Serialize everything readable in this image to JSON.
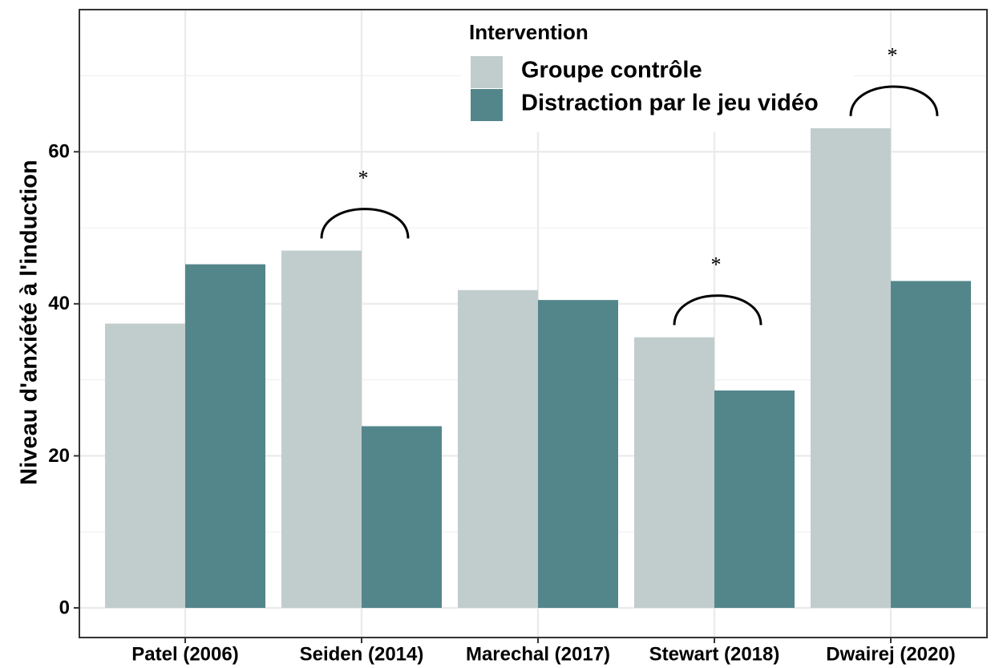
{
  "chart_data": {
    "type": "bar",
    "ylabel": "Niveau d'anxiété à l'induction",
    "categories": [
      "Patel (2006)",
      "Seiden (2014)",
      "Marechal (2017)",
      "Stewart (2018)",
      "Dwairej (2020)"
    ],
    "legend_title": "Intervention",
    "series": [
      {
        "name": "Groupe contrôle",
        "color": "#c1cdcd",
        "values": [
          37.4,
          47.0,
          41.8,
          35.6,
          63.1
        ]
      },
      {
        "name": "Distraction par le jeu vidéo",
        "color": "#53868b",
        "values": [
          45.2,
          23.9,
          40.5,
          28.6,
          43.0
        ]
      }
    ],
    "annotations": [
      {
        "category": 1,
        "text": "*"
      },
      {
        "category": 3,
        "text": "*"
      },
      {
        "category": 4,
        "text": "*"
      }
    ],
    "ylim": [
      -3.9,
      78.7
    ],
    "yticks": [
      0,
      20,
      40,
      60
    ],
    "yminor": [
      10,
      30,
      50,
      70
    ],
    "grid": true,
    "legend": "top"
  }
}
